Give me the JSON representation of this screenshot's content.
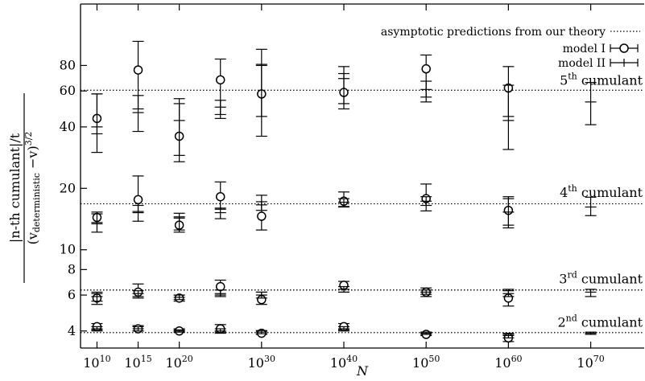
{
  "chart_data": {
    "type": "scatter",
    "xlabel": "N",
    "ylabel": "|n-th cumulant|/t / (v_deterministic − v)^{3/2}",
    "ylabel_parts": {
      "num": "|n-th cumulant|/t",
      "den_open": "(v",
      "den_sub": "deterministic",
      "den_close": " −v)",
      "den_exp": "3/2"
    },
    "x_scale": "log10",
    "y_scale": "log",
    "xlim_exponent": [
      8,
      76.5
    ],
    "ylim": [
      3.3,
      160
    ],
    "x_ticks": [
      {
        "exp": 10,
        "label_base": "10",
        "label_exp": "10"
      },
      {
        "exp": 15,
        "label_base": "10",
        "label_exp": "15"
      },
      {
        "exp": 20,
        "label_base": "10",
        "label_exp": "20"
      },
      {
        "exp": 30,
        "label_base": "10",
        "label_exp": "30"
      },
      {
        "exp": 40,
        "label_base": "10",
        "label_exp": "40"
      },
      {
        "exp": 50,
        "label_base": "10",
        "label_exp": "50"
      },
      {
        "exp": 60,
        "label_base": "10",
        "label_exp": "60"
      },
      {
        "exp": 70,
        "label_base": "10",
        "label_exp": "70"
      }
    ],
    "y_ticks": [
      {
        "value": 4,
        "label": "4"
      },
      {
        "value": 6,
        "label": "6"
      },
      {
        "value": 8,
        "label": "8"
      },
      {
        "value": 10,
        "label": "10"
      },
      {
        "value": 20,
        "label": "20"
      },
      {
        "value": 40,
        "label": "40"
      },
      {
        "value": 60,
        "label": "60"
      },
      {
        "value": 80,
        "label": "80"
      }
    ],
    "legend": {
      "placement": "top-right",
      "entries": [
        {
          "label": "asymptotic predictions from our theory",
          "style": "dotted"
        },
        {
          "label": "model I",
          "style": "circle-errorbar"
        },
        {
          "label": "model II",
          "style": "errorbar"
        }
      ]
    },
    "annotations": [
      {
        "n": 5,
        "base": "5",
        "sup": "th",
        "rest": " cumulant",
        "y": 62
      },
      {
        "n": 4,
        "base": "4",
        "sup": "th",
        "rest": " cumulant",
        "y": 17.5
      },
      {
        "n": 3,
        "base": "3",
        "sup": "rd",
        "rest": " cumulant",
        "y": 6.6
      },
      {
        "n": 2,
        "base": "2",
        "sup": "nd",
        "rest": " cumulant",
        "y": 4.05
      }
    ],
    "theory_lines": [
      {
        "cumulant": 2,
        "y": 3.93
      },
      {
        "cumulant": 3,
        "y": 6.35
      },
      {
        "cumulant": 4,
        "y": 16.8
      },
      {
        "cumulant": 5,
        "y": 60.5
      }
    ],
    "series": [
      {
        "name": "model I",
        "marker": "circle",
        "points": [
          {
            "x_exp": 10,
            "y": 44,
            "lo": 37,
            "hi": 58
          },
          {
            "x_exp": 15,
            "y": 76,
            "lo": 49,
            "hi": 105
          },
          {
            "x_exp": 20,
            "y": 36,
            "lo": 27,
            "hi": 55
          },
          {
            "x_exp": 25,
            "y": 68,
            "lo": 46,
            "hi": 86
          },
          {
            "x_exp": 30,
            "y": 58,
            "lo": 36,
            "hi": 96
          },
          {
            "x_exp": 40,
            "y": 59,
            "lo": 49,
            "hi": 79
          },
          {
            "x_exp": 50,
            "y": 77,
            "lo": 56,
            "hi": 90
          },
          {
            "x_exp": 60,
            "y": 62,
            "lo": 45,
            "hi": 79
          },
          {
            "x_exp": 10,
            "y": 14.4,
            "lo": 13.4,
            "hi": 15.3
          },
          {
            "x_exp": 15,
            "y": 17.6,
            "lo": 15.4,
            "hi": 23
          },
          {
            "x_exp": 20,
            "y": 13.2,
            "lo": 12.2,
            "hi": 14.5
          },
          {
            "x_exp": 25,
            "y": 18.2,
            "lo": 15.8,
            "hi": 21.5
          },
          {
            "x_exp": 30,
            "y": 14.6,
            "lo": 12.5,
            "hi": 18.5
          },
          {
            "x_exp": 40,
            "y": 17.3,
            "lo": 16.2,
            "hi": 19.2
          },
          {
            "x_exp": 50,
            "y": 17.8,
            "lo": 15.5,
            "hi": 21
          },
          {
            "x_exp": 60,
            "y": 15.6,
            "lo": 12.8,
            "hi": 17.8
          },
          {
            "x_exp": 10,
            "y": 5.8,
            "lo": 5.4,
            "hi": 6.2
          },
          {
            "x_exp": 15,
            "y": 6.2,
            "lo": 5.8,
            "hi": 6.8
          },
          {
            "x_exp": 20,
            "y": 5.8,
            "lo": 5.6,
            "hi": 6.0
          },
          {
            "x_exp": 25,
            "y": 6.6,
            "lo": 6.0,
            "hi": 7.1
          },
          {
            "x_exp": 30,
            "y": 5.7,
            "lo": 5.4,
            "hi": 6.2
          },
          {
            "x_exp": 40,
            "y": 6.7,
            "lo": 6.2,
            "hi": 7.0
          },
          {
            "x_exp": 50,
            "y": 6.2,
            "lo": 5.9,
            "hi": 6.5
          },
          {
            "x_exp": 60,
            "y": 5.8,
            "lo": 5.3,
            "hi": 6.3
          },
          {
            "x_exp": 10,
            "y": 4.2,
            "lo": 4.05,
            "hi": 4.35
          },
          {
            "x_exp": 15,
            "y": 4.1,
            "lo": 4.0,
            "hi": 4.25
          },
          {
            "x_exp": 20,
            "y": 4.0,
            "lo": 3.95,
            "hi": 4.1
          },
          {
            "x_exp": 25,
            "y": 4.1,
            "lo": 3.95,
            "hi": 4.3
          },
          {
            "x_exp": 30,
            "y": 3.9,
            "lo": 3.85,
            "hi": 4.0
          },
          {
            "x_exp": 40,
            "y": 4.2,
            "lo": 4.05,
            "hi": 4.35
          },
          {
            "x_exp": 50,
            "y": 3.85,
            "lo": 3.8,
            "hi": 3.95
          },
          {
            "x_exp": 60,
            "y": 3.7,
            "lo": 3.55,
            "hi": 3.85
          }
        ]
      },
      {
        "name": "model II",
        "marker": "none",
        "points": [
          {
            "x_exp": 10,
            "y": 40,
            "lo": 30,
            "hi": 58
          },
          {
            "x_exp": 15,
            "y": 47,
            "lo": 38,
            "hi": 57
          },
          {
            "x_exp": 20,
            "y": 43,
            "lo": 29,
            "hi": 52
          },
          {
            "x_exp": 25,
            "y": 50,
            "lo": 44,
            "hi": 54
          },
          {
            "x_exp": 30,
            "y": 80,
            "lo": 45,
            "hi": 81
          },
          {
            "x_exp": 40,
            "y": 69,
            "lo": 52,
            "hi": 73
          },
          {
            "x_exp": 50,
            "y": 61,
            "lo": 53,
            "hi": 67
          },
          {
            "x_exp": 60,
            "y": 43,
            "lo": 31,
            "hi": 64
          },
          {
            "x_exp": 70,
            "y": 53,
            "lo": 41,
            "hi": 66
          },
          {
            "x_exp": 10,
            "y": 13.6,
            "lo": 12.2,
            "hi": 15
          },
          {
            "x_exp": 15,
            "y": 15.2,
            "lo": 13.8,
            "hi": 16.5
          },
          {
            "x_exp": 20,
            "y": 14.3,
            "lo": 12.5,
            "hi": 15.1
          },
          {
            "x_exp": 25,
            "y": 15.2,
            "lo": 14.2,
            "hi": 16
          },
          {
            "x_exp": 30,
            "y": 16.6,
            "lo": 15.6,
            "hi": 17.2
          },
          {
            "x_exp": 40,
            "y": 17.1,
            "lo": 16.3,
            "hi": 17.8
          },
          {
            "x_exp": 50,
            "y": 17.3,
            "lo": 16.5,
            "hi": 18.2
          },
          {
            "x_exp": 60,
            "y": 15.3,
            "lo": 13.2,
            "hi": 18.2
          },
          {
            "x_exp": 70,
            "y": 16.2,
            "lo": 14.7,
            "hi": 18.1
          },
          {
            "x_exp": 10,
            "y": 5.9,
            "lo": 5.6,
            "hi": 6.1
          },
          {
            "x_exp": 15,
            "y": 6.1,
            "lo": 5.9,
            "hi": 6.3
          },
          {
            "x_exp": 20,
            "y": 5.85,
            "lo": 5.7,
            "hi": 6.0
          },
          {
            "x_exp": 25,
            "y": 6.1,
            "lo": 5.9,
            "hi": 6.35
          },
          {
            "x_exp": 30,
            "y": 6.0,
            "lo": 5.8,
            "hi": 6.2
          },
          {
            "x_exp": 40,
            "y": 6.4,
            "lo": 6.2,
            "hi": 6.6
          },
          {
            "x_exp": 50,
            "y": 6.2,
            "lo": 6.05,
            "hi": 6.35
          },
          {
            "x_exp": 60,
            "y": 6.1,
            "lo": 5.9,
            "hi": 6.4
          },
          {
            "x_exp": 70,
            "y": 6.2,
            "lo": 5.9,
            "hi": 6.4
          },
          {
            "x_exp": 10,
            "y": 4.1,
            "lo": 4.0,
            "hi": 4.2
          },
          {
            "x_exp": 15,
            "y": 4.1,
            "lo": 4.0,
            "hi": 4.2
          },
          {
            "x_exp": 20,
            "y": 4.0,
            "lo": 3.95,
            "hi": 4.05
          },
          {
            "x_exp": 25,
            "y": 4.0,
            "lo": 3.9,
            "hi": 4.1
          },
          {
            "x_exp": 30,
            "y": 3.95,
            "lo": 3.88,
            "hi": 4.02
          },
          {
            "x_exp": 40,
            "y": 4.1,
            "lo": 4.0,
            "hi": 4.2
          },
          {
            "x_exp": 50,
            "y": 3.9,
            "lo": 3.85,
            "hi": 3.95
          },
          {
            "x_exp": 60,
            "y": 3.8,
            "lo": 3.7,
            "hi": 3.9
          },
          {
            "x_exp": 70,
            "y": 3.9,
            "lo": 3.85,
            "hi": 3.95
          }
        ]
      }
    ]
  }
}
